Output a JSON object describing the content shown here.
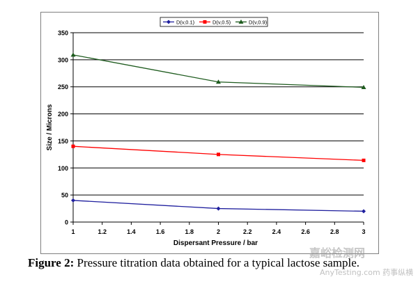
{
  "chart_data": {
    "type": "line",
    "title": "",
    "xlabel": "Dispersant Pressure / bar",
    "ylabel": "Size / Microns",
    "xlim": [
      1,
      3
    ],
    "ylim": [
      0,
      350
    ],
    "x_ticks": [
      "1",
      "1.2",
      "1.4",
      "1.6",
      "1.8",
      "2",
      "2.2",
      "2.4",
      "2.6",
      "2.8",
      "3"
    ],
    "y_ticks": [
      "0",
      "50",
      "100",
      "150",
      "200",
      "250",
      "300",
      "350"
    ],
    "grid": "horizontal",
    "legend_position": "top-center",
    "series": [
      {
        "name": "D(v,0.1)",
        "x": [
          1,
          2,
          3
        ],
        "values": [
          40,
          25,
          20
        ],
        "color": "#1f1f9e",
        "marker": "diamond"
      },
      {
        "name": "D(v,0.5)",
        "x": [
          1,
          2,
          3
        ],
        "values": [
          140,
          125,
          114
        ],
        "color": "#ff0000",
        "marker": "square"
      },
      {
        "name": "D(v,0.9)",
        "x": [
          1,
          2,
          3
        ],
        "values": [
          309,
          259,
          249
        ],
        "color": "#1e5b1e",
        "marker": "triangle"
      }
    ]
  },
  "caption": {
    "label": "Figure 2:",
    "text": " Pressure titration data obtained for a typical lactose sample."
  },
  "watermark": {
    "main": "嘉峪检测网",
    "sub": "AnyTesting.com",
    "overlay": "药事纵横"
  }
}
